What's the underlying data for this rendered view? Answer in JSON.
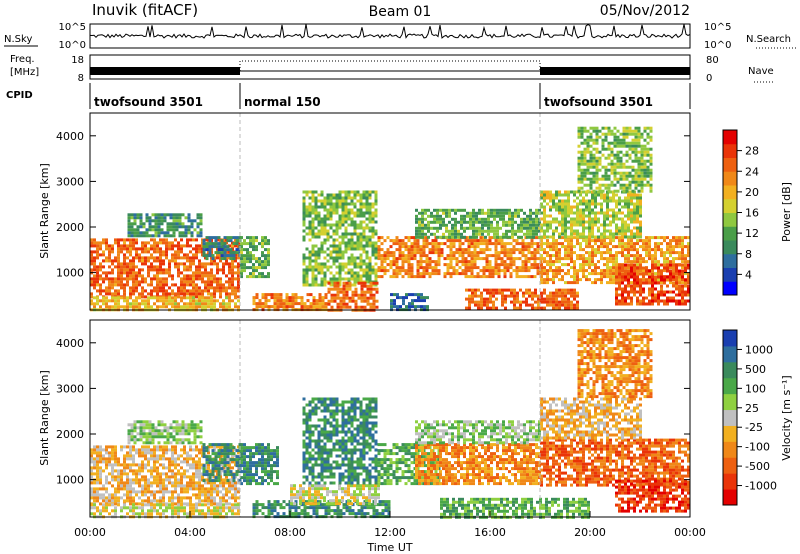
{
  "header": {
    "station": "Inuvik (fitACF)",
    "beam": "Beam 01",
    "date": "05/Nov/2012"
  },
  "summary_panel": {
    "left_top": {
      "label": "N.Sky",
      "ticks": [
        "10^5",
        "10^0"
      ]
    },
    "right_top": {
      "label": "N.Search",
      "ticks": [
        "10^5",
        "10^0"
      ]
    },
    "left_mid": {
      "label_lines": [
        "Freq.",
        "[MHz]"
      ],
      "ticks": [
        "18",
        "8"
      ]
    },
    "right_mid": {
      "label": "Nave",
      "ticks": [
        "80",
        "0"
      ]
    },
    "cpid_label": "CPID",
    "cpid_segments": [
      {
        "name": "twofsound 3501",
        "start_hour": 0,
        "end_hour": 6
      },
      {
        "name": "normal 150",
        "start_hour": 6,
        "end_hour": 18
      },
      {
        "name": "twofsound 3501",
        "start_hour": 18,
        "end_hour": 24
      }
    ]
  },
  "chart_data": [
    {
      "type": "heatmap",
      "name": "power",
      "ylabel": "Slant Range [km]",
      "xlabel": "",
      "x_range_hours": [
        0,
        24
      ],
      "ylim": [
        180,
        4500
      ],
      "yticks": [
        1000,
        2000,
        3000,
        4000
      ],
      "colorbar": {
        "label": "Power [dB]",
        "range": [
          0,
          32
        ],
        "ticks": [
          "4",
          "8",
          "12",
          "16",
          "20",
          "24",
          "28"
        ],
        "colors": [
          "#0000ff",
          "#1a3fb0",
          "#2e6e9e",
          "#3a8a5c",
          "#4a9e48",
          "#8fc840",
          "#d4d030",
          "#f2b020",
          "#f08818",
          "#ee6010",
          "#ea3408",
          "#e40000"
        ]
      },
      "bands": [
        {
          "t0": 0.0,
          "t1": 6.0,
          "r0": 500,
          "r1": 1750,
          "level": 26
        },
        {
          "t0": 0.0,
          "t1": 6.0,
          "r0": 200,
          "r1": 480,
          "level": 20
        },
        {
          "t0": 1.5,
          "t1": 4.5,
          "r0": 1800,
          "r1": 2300,
          "level": 10
        },
        {
          "t0": 4.5,
          "t1": 6.0,
          "r0": 1300,
          "r1": 1800,
          "level": 8
        },
        {
          "t0": 6.0,
          "t1": 7.2,
          "r0": 900,
          "r1": 1800,
          "level": 12
        },
        {
          "t0": 6.5,
          "t1": 9.5,
          "r0": 180,
          "r1": 550,
          "level": 24
        },
        {
          "t0": 8.5,
          "t1": 11.5,
          "r0": 700,
          "r1": 2800,
          "level": 14
        },
        {
          "t0": 9.5,
          "t1": 11.5,
          "r0": 200,
          "r1": 800,
          "level": 26
        },
        {
          "t0": 11.5,
          "t1": 18.0,
          "r0": 900,
          "r1": 1800,
          "level": 24
        },
        {
          "t0": 12.0,
          "t1": 13.5,
          "r0": 200,
          "r1": 550,
          "level": 6
        },
        {
          "t0": 13.0,
          "t1": 18.0,
          "r0": 1800,
          "r1": 2400,
          "level": 12
        },
        {
          "t0": 15.0,
          "t1": 19.5,
          "r0": 200,
          "r1": 650,
          "level": 26
        },
        {
          "t0": 18.0,
          "t1": 24.0,
          "r0": 800,
          "r1": 1800,
          "level": 22
        },
        {
          "t0": 18.0,
          "t1": 22.0,
          "r0": 1800,
          "r1": 2800,
          "level": 16
        },
        {
          "t0": 21.0,
          "t1": 24.0,
          "r0": 300,
          "r1": 1200,
          "level": 28
        },
        {
          "t0": 19.5,
          "t1": 22.5,
          "r0": 2800,
          "r1": 4200,
          "level": 14
        }
      ]
    },
    {
      "type": "heatmap",
      "name": "velocity",
      "ylabel": "Slant Range [km]",
      "xlabel": "Time UT",
      "x_range_hours": [
        0,
        24
      ],
      "xticks": [
        "00:00",
        "04:00",
        "08:00",
        "12:00",
        "16:00",
        "20:00",
        "00:00"
      ],
      "ylim": [
        180,
        4500
      ],
      "yticks": [
        1000,
        2000,
        3000,
        4000
      ],
      "colorbar": {
        "label": "Velocity [m s⁻¹]",
        "ticks": [
          "1000",
          "500",
          "100",
          "25",
          "-25",
          "-100",
          "-500",
          "-1000"
        ],
        "colors": [
          "#1a3fb0",
          "#2e6e9e",
          "#3a8a5c",
          "#4aa848",
          "#8fd040",
          "#c0c0c0",
          "#f2b020",
          "#f08818",
          "#ee6010",
          "#ea3408",
          "#e40000"
        ]
      },
      "bands": [
        {
          "t0": 0.0,
          "t1": 6.0,
          "r0": 500,
          "r1": 1750,
          "level": 6
        },
        {
          "t0": 0.0,
          "t1": 6.0,
          "r0": 200,
          "r1": 480,
          "level": 5
        },
        {
          "t0": 4.5,
          "t1": 6.0,
          "r0": 1000,
          "r1": 1800,
          "level": 2
        },
        {
          "t0": 1.5,
          "t1": 4.5,
          "r0": 1800,
          "r1": 2300,
          "level": 4
        },
        {
          "t0": 6.0,
          "t1": 7.5,
          "r0": 900,
          "r1": 1800,
          "level": 2
        },
        {
          "t0": 6.5,
          "t1": 12.0,
          "r0": 180,
          "r1": 550,
          "level": 2
        },
        {
          "t0": 8.0,
          "t1": 11.5,
          "r0": 500,
          "r1": 900,
          "level": 5
        },
        {
          "t0": 8.5,
          "t1": 11.5,
          "r0": 900,
          "r1": 2800,
          "level": 2
        },
        {
          "t0": 11.5,
          "t1": 14.0,
          "r0": 900,
          "r1": 1800,
          "level": 3
        },
        {
          "t0": 13.0,
          "t1": 18.0,
          "r0": 900,
          "r1": 1800,
          "level": 7
        },
        {
          "t0": 13.0,
          "t1": 18.0,
          "r0": 1800,
          "r1": 2300,
          "level": 4
        },
        {
          "t0": 14.0,
          "t1": 20.0,
          "r0": 200,
          "r1": 600,
          "level": 3
        },
        {
          "t0": 18.0,
          "t1": 24.0,
          "r0": 900,
          "r1": 1900,
          "level": 8
        },
        {
          "t0": 18.0,
          "t1": 22.0,
          "r0": 1900,
          "r1": 2800,
          "level": 6
        },
        {
          "t0": 21.0,
          "t1": 24.0,
          "r0": 300,
          "r1": 1000,
          "level": 9
        },
        {
          "t0": 19.5,
          "t1": 22.5,
          "r0": 2800,
          "r1": 4300,
          "level": 7
        }
      ]
    }
  ]
}
